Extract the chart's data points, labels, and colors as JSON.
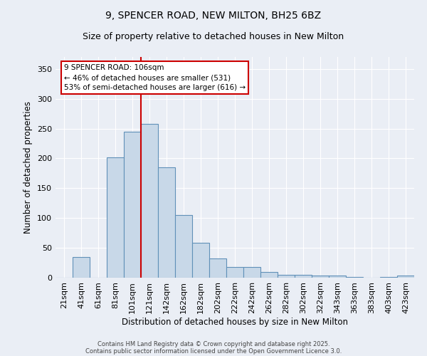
{
  "title_line1": "9, SPENCER ROAD, NEW MILTON, BH25 6BZ",
  "title_line2": "Size of property relative to detached houses in New Milton",
  "xlabel": "Distribution of detached houses by size in New Milton",
  "ylabel": "Number of detached properties",
  "bar_labels": [
    "21sqm",
    "41sqm",
    "61sqm",
    "81sqm",
    "101sqm",
    "121sqm",
    "142sqm",
    "162sqm",
    "182sqm",
    "202sqm",
    "222sqm",
    "242sqm",
    "262sqm",
    "282sqm",
    "302sqm",
    "322sqm",
    "343sqm",
    "363sqm",
    "383sqm",
    "403sqm",
    "423sqm"
  ],
  "bar_values": [
    0,
    35,
    0,
    202,
    245,
    258,
    185,
    105,
    58,
    32,
    18,
    18,
    9,
    5,
    5,
    3,
    3,
    1,
    0,
    1,
    3
  ],
  "bar_color": "#c8d8e8",
  "bar_edge_color": "#6090b8",
  "background_color": "#eaeef5",
  "grid_color": "#ffffff",
  "annotation_text": "9 SPENCER ROAD: 106sqm\n← 46% of detached houses are smaller (531)\n53% of semi-detached houses are larger (616) →",
  "annotation_box_color": "#ffffff",
  "annotation_box_edge_color": "#cc0000",
  "ylim": [
    0,
    370
  ],
  "yticks": [
    0,
    50,
    100,
    150,
    200,
    250,
    300,
    350
  ],
  "footer_line1": "Contains HM Land Registry data © Crown copyright and database right 2025.",
  "footer_line2": "Contains public sector information licensed under the Open Government Licence 3.0."
}
